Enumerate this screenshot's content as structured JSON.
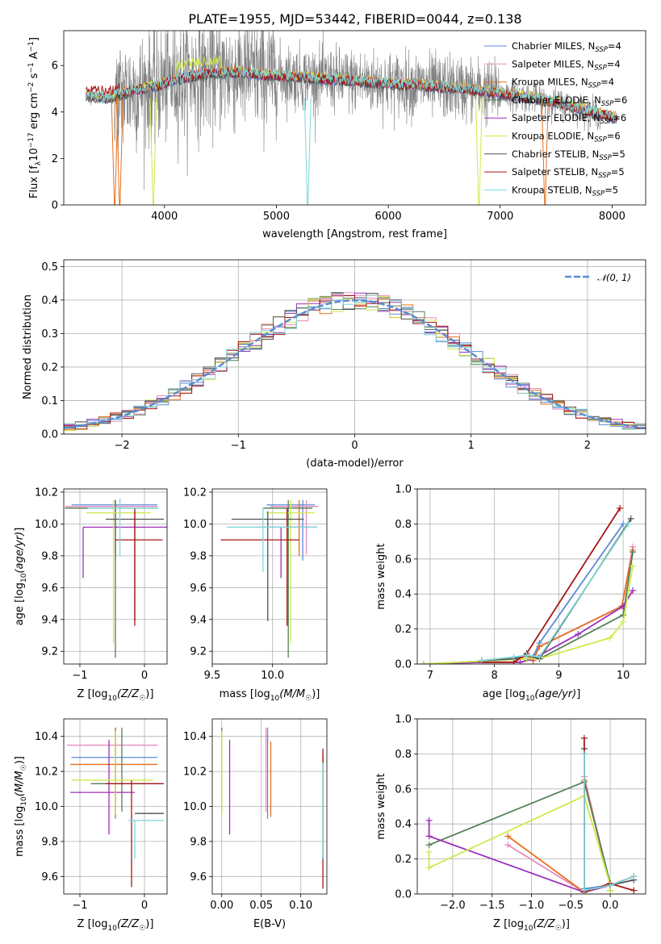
{
  "title": "PLATE=1955, MJD=53442, FIBERID=0044, z=0.138",
  "colors": {
    "Chabrier MILES": "#5b8bd6",
    "Salpeter MILES": "#e68bbf",
    "Kroupa MILES": "#e6701f",
    "Chabrier ELODIE": "#557f57",
    "Salpeter ELODIE": "#9b30b8",
    "Kroupa ELODIE": "#cdea4a",
    "Chabrier STELIB": "#505050",
    "Salpeter STELIB": "#a81616",
    "Kroupa STELIB": "#7fd6d6",
    "normal": "#5b8bd6",
    "data": "#808080"
  },
  "legend_spectrum": [
    {
      "key": "Chabrier MILES",
      "label": "Chabrier MILES, N",
      "sub": "SSP",
      "tail": "=4"
    },
    {
      "key": "Salpeter MILES",
      "label": "Salpeter MILES, N",
      "sub": "SSP",
      "tail": "=4"
    },
    {
      "key": "Kroupa MILES",
      "label": "Kroupa MILES, N",
      "sub": "SSP",
      "tail": "=4"
    },
    {
      "key": "Chabrier ELODIE",
      "label": "Chabrier ELODIE, N",
      "sub": "SSP",
      "tail": "=6"
    },
    {
      "key": "Salpeter ELODIE",
      "label": "Salpeter ELODIE, N",
      "sub": "SSP",
      "tail": "=6"
    },
    {
      "key": "Kroupa ELODIE",
      "label": "Kroupa ELODIE, N",
      "sub": "SSP",
      "tail": "=6"
    },
    {
      "key": "Chabrier STELIB",
      "label": "Chabrier STELIB, N",
      "sub": "SSP",
      "tail": "=5"
    },
    {
      "key": "Salpeter STELIB",
      "label": "Salpeter STELIB, N",
      "sub": "SSP",
      "tail": "=5"
    },
    {
      "key": "Kroupa STELIB",
      "label": "Kroupa STELIB, N",
      "sub": "SSP",
      "tail": "=5"
    }
  ],
  "legend_hist": "𝒩(0, 1)",
  "chart_data": [
    {
      "id": "spectrum",
      "type": "line",
      "xlabel": "wavelength [Angstrom, rest frame]",
      "ylabel": "Flux [f_λ 10^-17 erg cm^-2 s^-1 A^-1]",
      "xlim": [
        3100,
        8300
      ],
      "ylim": [
        0,
        7.5
      ],
      "xticks": [
        4000,
        5000,
        6000,
        7000,
        8000
      ],
      "yticks": [
        0,
        2,
        4,
        6
      ],
      "grid": false,
      "legend": "upper-right",
      "model_continuum": {
        "x": [
          3300,
          3500,
          3700,
          3900,
          4100,
          4300,
          4500,
          4700,
          4900,
          5200,
          5500,
          5800,
          6100,
          6400,
          6700,
          7000,
          7300,
          7600,
          7800,
          8000,
          8050
        ],
        "y": [
          4.7,
          4.6,
          4.9,
          5.1,
          5.4,
          5.6,
          5.7,
          5.7,
          5.6,
          5.5,
          5.4,
          5.3,
          5.2,
          5.1,
          5.0,
          4.8,
          4.6,
          4.3,
          4.0,
          3.8,
          3.7
        ]
      },
      "data_noise_amplitude": 1.8
    },
    {
      "id": "residual-histogram",
      "type": "line",
      "xlabel": "(data-model)/error",
      "ylabel": "Normed distribution",
      "xlim": [
        -2.5,
        2.5
      ],
      "ylim": [
        0,
        0.52
      ],
      "xticks": [
        -2,
        -1,
        0,
        1,
        2
      ],
      "yticks": [
        0.0,
        0.1,
        0.2,
        0.3,
        0.4,
        0.5
      ],
      "grid": true,
      "legend": "upper-right",
      "bin_width": 0.1,
      "reference_curve": "N(0,1)"
    },
    {
      "id": "age-vs-Z",
      "type": "scatter",
      "xlabel": "Z [log10(Z/Z☉)]",
      "ylabel": "age  [log10(age/yr)]",
      "xlim": [
        -1.25,
        0.35
      ],
      "ylim": [
        9.12,
        10.22
      ],
      "xticks": [
        -1,
        0
      ],
      "yticks": [
        9.2,
        9.4,
        9.6,
        9.8,
        10.0,
        10.2
      ],
      "grid": true,
      "points": [
        {
          "key": "Chabrier MILES",
          "x": -0.45,
          "xerr": [
            0.68,
            0.65
          ],
          "y": 10.12,
          "yerr": [
            0.35,
            0.03
          ]
        },
        {
          "key": "Salpeter MILES",
          "x": -0.45,
          "xerr": [
            0.78,
            0.65
          ],
          "y": 10.11,
          "yerr": [
            0.3,
            0.04
          ]
        },
        {
          "key": "Kroupa MILES",
          "x": -0.45,
          "xerr": [
            0.78,
            0.65
          ],
          "y": 10.1,
          "yerr": [
            0.3,
            0.05
          ]
        },
        {
          "key": "Chabrier ELODIE",
          "x": -0.45,
          "xerr": [
            0.78,
            0.65
          ],
          "y": 10.1,
          "yerr": [
            0.94,
            0.05
          ]
        },
        {
          "key": "Salpeter ELODIE",
          "x": -0.95,
          "xerr": [
            0.0,
            1.6
          ],
          "y": 9.98,
          "yerr": [
            0.32,
            0.0
          ]
        },
        {
          "key": "Kroupa ELODIE",
          "x": -0.48,
          "xerr": [
            0.42,
            0.58
          ],
          "y": 10.07,
          "yerr": [
            0.82,
            0.08
          ]
        },
        {
          "key": "Chabrier STELIB",
          "x": -0.15,
          "xerr": [
            0.45,
            0.45
          ],
          "y": 10.03,
          "yerr": [
            0.64,
            0.05
          ]
        },
        {
          "key": "Salpeter STELIB",
          "x": -0.15,
          "xerr": [
            0.3,
            0.43
          ],
          "y": 9.9,
          "yerr": [
            0.54,
            0.2
          ]
        },
        {
          "key": "Kroupa STELIB",
          "x": -0.38,
          "xerr": [
            0.5,
            0.6
          ],
          "y": 10.1,
          "yerr": [
            0.3,
            0.06
          ]
        }
      ]
    },
    {
      "id": "age-vs-mass",
      "type": "scatter",
      "xlabel": "mass [log10(M/M☉)]",
      "ylabel": "",
      "xlim": [
        9.5,
        10.45
      ],
      "ylim": [
        9.12,
        10.22
      ],
      "xticks": [
        9.5,
        10.0
      ],
      "yticks": [
        9.2,
        9.4,
        9.6,
        9.8,
        10.0,
        10.2
      ],
      "grid": true,
      "points": [
        {
          "key": "Chabrier MILES",
          "x": 10.25,
          "xerr": [
            0.3,
            0.1
          ],
          "y": 10.12,
          "yerr": [
            0.35,
            0.03
          ]
        },
        {
          "key": "Salpeter MILES",
          "x": 10.28,
          "xerr": [
            0.3,
            0.1
          ],
          "y": 10.11,
          "yerr": [
            0.3,
            0.04
          ]
        },
        {
          "key": "Kroupa MILES",
          "x": 10.22,
          "xerr": [
            0.3,
            0.1
          ],
          "y": 10.1,
          "yerr": [
            0.3,
            0.05
          ]
        },
        {
          "key": "Chabrier ELODIE",
          "x": 10.13,
          "xerr": [
            0.2,
            0.2
          ],
          "y": 10.1,
          "yerr": [
            0.94,
            0.05
          ]
        },
        {
          "key": "Salpeter ELODIE",
          "x": 10.07,
          "xerr": [
            0.2,
            0.3
          ],
          "y": 9.98,
          "yerr": [
            0.32,
            0.0
          ]
        },
        {
          "key": "Kroupa ELODIE",
          "x": 10.15,
          "xerr": [
            0.2,
            0.2
          ],
          "y": 10.07,
          "yerr": [
            0.82,
            0.08
          ]
        },
        {
          "key": "Chabrier STELIB",
          "x": 9.96,
          "xerr": [
            0.3,
            0.3
          ],
          "y": 10.03,
          "yerr": [
            0.64,
            0.05
          ]
        },
        {
          "key": "Salpeter STELIB",
          "x": 10.12,
          "xerr": [
            0.55,
            0.1
          ],
          "y": 9.9,
          "yerr": [
            0.54,
            0.2
          ]
        },
        {
          "key": "Kroupa STELIB",
          "x": 9.92,
          "xerr": [
            0.3,
            0.45
          ],
          "y": 9.98,
          "yerr": [
            0.28,
            0.12
          ]
        }
      ]
    },
    {
      "id": "mass-weight-vs-age",
      "type": "line",
      "xlabel": "age  [log10(age/yr)]",
      "ylabel": "mass weight",
      "xlim": [
        6.8,
        10.35
      ],
      "ylim": [
        0,
        1.0
      ],
      "xticks": [
        7,
        8,
        9,
        10
      ],
      "yticks": [
        0.0,
        0.2,
        0.4,
        0.6,
        0.8,
        1.0
      ],
      "grid": true,
      "series": [
        {
          "key": "Chabrier MILES",
          "x": [
            8.3,
            8.5,
            8.6,
            8.7,
            10.0
          ],
          "y": [
            0.03,
            0.05,
            0.04,
            0.12,
            0.8
          ]
        },
        {
          "key": "Salpeter MILES",
          "x": [
            8.3,
            8.5,
            8.6,
            8.7,
            9.98,
            10.15
          ],
          "y": [
            0.01,
            0.05,
            0.02,
            0.1,
            0.33,
            0.67
          ]
        },
        {
          "key": "Kroupa MILES",
          "x": [
            8.3,
            8.5,
            8.6,
            8.7,
            9.98,
            10.15
          ],
          "y": [
            0.01,
            0.05,
            0.02,
            0.1,
            0.33,
            0.65
          ]
        },
        {
          "key": "Chabrier ELODIE",
          "x": [
            6.9,
            8.5,
            8.7,
            10.0,
            10.15
          ],
          "y": [
            0.0,
            0.03,
            0.03,
            0.28,
            0.64
          ]
        },
        {
          "key": "Salpeter ELODIE",
          "x": [
            6.9,
            7.8,
            8.4,
            8.6,
            9.3,
            10.0,
            10.15
          ],
          "y": [
            0.0,
            0.01,
            0.01,
            0.03,
            0.17,
            0.33,
            0.42
          ]
        },
        {
          "key": "Kroupa ELODIE",
          "x": [
            6.9,
            8.5,
            8.7,
            9.8,
            10.0,
            10.15
          ],
          "y": [
            0.0,
            0.03,
            0.03,
            0.15,
            0.24,
            0.56
          ]
        },
        {
          "key": "Chabrier STELIB",
          "x": [
            7.8,
            8.3,
            8.5,
            8.7,
            10.12
          ],
          "y": [
            0.02,
            0.03,
            0.05,
            0.03,
            0.83
          ]
        },
        {
          "key": "Salpeter STELIB",
          "x": [
            7.8,
            8.3,
            8.5,
            9.95
          ],
          "y": [
            0.01,
            0.01,
            0.06,
            0.89
          ]
        },
        {
          "key": "Kroupa STELIB",
          "x": [
            7.8,
            8.3,
            8.5,
            8.7,
            10.08
          ],
          "y": [
            0.02,
            0.04,
            0.05,
            0.04,
            0.8
          ]
        }
      ]
    },
    {
      "id": "mass-vs-Z",
      "type": "scatter",
      "xlabel": "Z [log10(Z/Z☉)]",
      "ylabel": "mass [log10(M/M☉)]",
      "xlim": [
        -1.25,
        0.35
      ],
      "ylim": [
        9.5,
        10.5
      ],
      "xticks": [
        -1,
        0
      ],
      "yticks": [
        9.6,
        9.8,
        10.0,
        10.2,
        10.4
      ],
      "grid": true,
      "points": [
        {
          "key": "Chabrier MILES",
          "x": -0.45,
          "xerr": [
            0.68,
            0.65
          ],
          "y": 10.28,
          "yerr": [
            0.35,
            0.17
          ]
        },
        {
          "key": "Salpeter MILES",
          "x": -0.45,
          "xerr": [
            0.75,
            0.65
          ],
          "y": 10.35,
          "yerr": [
            0.38,
            0.1
          ]
        },
        {
          "key": "Kroupa MILES",
          "x": -0.45,
          "xerr": [
            0.7,
            0.65
          ],
          "y": 10.24,
          "yerr": [
            0.3,
            0.21
          ]
        },
        {
          "key": "Chabrier ELODIE",
          "x": -0.35,
          "xerr": [
            0.48,
            0.58
          ],
          "y": 10.13,
          "yerr": [
            0.16,
            0.32
          ]
        },
        {
          "key": "Salpeter ELODIE",
          "x": -0.55,
          "xerr": [
            0.6,
            0.4
          ],
          "y": 10.08,
          "yerr": [
            0.24,
            0.3
          ]
        },
        {
          "key": "Kroupa ELODIE",
          "x": -0.45,
          "xerr": [
            0.68,
            0.58
          ],
          "y": 10.15,
          "yerr": [
            0.2,
            0.28
          ]
        },
        {
          "key": "Chabrier STELIB",
          "x": -0.15,
          "xerr": [
            0.0,
            0.45
          ],
          "y": 9.96,
          "yerr": [
            0.0,
            0.0
          ]
        },
        {
          "key": "Salpeter STELIB",
          "x": -0.2,
          "xerr": [
            0.4,
            0.5
          ],
          "y": 10.13,
          "yerr": [
            0.59,
            0.02
          ]
        },
        {
          "key": "Kroupa STELIB",
          "x": -0.15,
          "xerr": [
            0.1,
            0.45
          ],
          "y": 9.92,
          "yerr": [
            0.22,
            0.0
          ]
        }
      ]
    },
    {
      "id": "mass-vs-ebv",
      "type": "scatter",
      "xlabel": "E(B-V)",
      "ylabel": "",
      "xlim": [
        -0.012,
        0.133
      ],
      "ylim": [
        9.5,
        10.5
      ],
      "xticks": [
        0.0,
        0.05,
        0.1
      ],
      "yticks": [
        9.6,
        9.8,
        10.0,
        10.2,
        10.4
      ],
      "grid": true,
      "points": [
        {
          "key": "Chabrier MILES",
          "x": 0.058,
          "y": 10.28,
          "yerr": [
            0.35,
            0.17
          ]
        },
        {
          "key": "Salpeter MILES",
          "x": 0.056,
          "y": 10.35,
          "yerr": [
            0.38,
            0.1
          ]
        },
        {
          "key": "Kroupa MILES",
          "x": 0.062,
          "y": 10.24,
          "yerr": [
            0.3,
            0.13
          ]
        },
        {
          "key": "Chabrier ELODIE",
          "x": 0.0,
          "y": 10.13,
          "yerr": [
            0.16,
            0.32
          ]
        },
        {
          "key": "Salpeter ELODIE",
          "x": 0.01,
          "y": 10.08,
          "yerr": [
            0.24,
            0.3
          ]
        },
        {
          "key": "Kroupa ELODIE",
          "x": 0.0,
          "y": 10.15,
          "yerr": [
            0.2,
            0.28
          ]
        },
        {
          "key": "Chabrier STELIB",
          "x": 0.128,
          "y": 10.1,
          "yerr": [
            0.4,
            0.2
          ]
        },
        {
          "key": "Salpeter STELIB",
          "x": 0.128,
          "y": 10.13,
          "yerr": [
            0.6,
            0.2
          ]
        },
        {
          "key": "Kroupa STELIB",
          "x": 0.128,
          "y": 9.95,
          "yerr": [
            0.25,
            0.3
          ]
        }
      ]
    },
    {
      "id": "mass-weight-vs-Z",
      "type": "line",
      "xlabel": "Z [log10(Z/Z☉)]",
      "ylabel": "mass weight",
      "xlim": [
        -2.45,
        0.45
      ],
      "ylim": [
        0,
        1.0
      ],
      "xticks": [
        -2.0,
        -1.5,
        -1.0,
        -0.5,
        0.0
      ],
      "yticks": [
        0.0,
        0.2,
        0.4,
        0.6,
        0.8,
        1.0
      ],
      "grid": true,
      "series": [
        {
          "key": "Chabrier MILES",
          "x": [
            -0.33,
            -0.33,
            0.0,
            0.3
          ],
          "y": [
            0.8,
            0.03,
            0.05,
            0.1
          ]
        },
        {
          "key": "Salpeter MILES",
          "x": [
            -1.3,
            -0.33,
            -0.33,
            0.0,
            0.3
          ],
          "y": [
            0.28,
            0.01,
            0.67,
            0.05,
            0.1
          ]
        },
        {
          "key": "Kroupa MILES",
          "x": [
            -1.3,
            -0.33,
            -0.33,
            0.0,
            0.3
          ],
          "y": [
            0.33,
            0.01,
            0.65,
            0.05,
            0.1
          ]
        },
        {
          "key": "Chabrier ELODIE",
          "x": [
            -2.3,
            -0.33,
            0.0,
            0.0
          ],
          "y": [
            0.28,
            0.64,
            0.06,
            0.02
          ]
        },
        {
          "key": "Salpeter ELODIE",
          "x": [
            -2.3,
            -2.3,
            -0.33,
            0.0,
            0.0
          ],
          "y": [
            0.42,
            0.33,
            0.01,
            0.05,
            0.02
          ]
        },
        {
          "key": "Kroupa ELODIE",
          "x": [
            -2.3,
            -2.3,
            -0.33,
            0.0,
            0.0
          ],
          "y": [
            0.24,
            0.15,
            0.56,
            0.05,
            0.02
          ]
        },
        {
          "key": "Chabrier STELIB",
          "x": [
            -0.33,
            -0.33,
            0.0,
            0.3
          ],
          "y": [
            0.83,
            0.02,
            0.05,
            0.08
          ]
        },
        {
          "key": "Salpeter STELIB",
          "x": [
            -0.33,
            -0.33,
            -0.33,
            0.0,
            0.3
          ],
          "y": [
            0.89,
            0.01,
            0.01,
            0.06,
            0.02
          ]
        },
        {
          "key": "Kroupa STELIB",
          "x": [
            -0.33,
            -0.33,
            0.0,
            0.3
          ],
          "y": [
            0.8,
            0.02,
            0.05,
            0.1
          ]
        }
      ]
    }
  ]
}
